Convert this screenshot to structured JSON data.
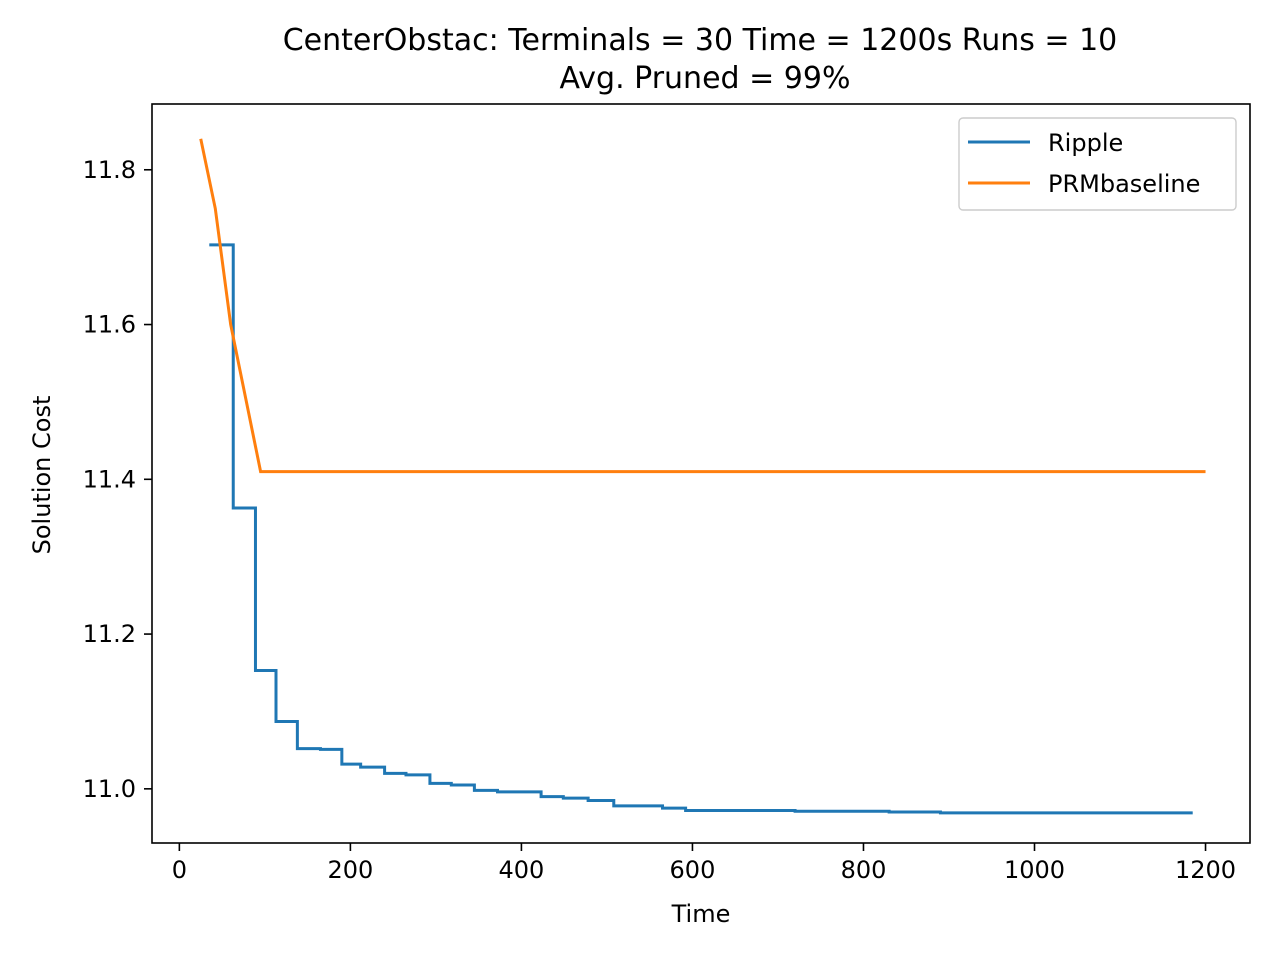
{
  "chart_data": {
    "type": "line",
    "title": "CenterObstac:  Terminals = 30  Time = 1200s  Runs = 10",
    "subtitle": "Avg. Pruned = 99%",
    "xlabel": "Time",
    "ylabel": "Solution Cost",
    "xlim": [
      -32,
      1252
    ],
    "ylim": [
      10.93,
      11.885
    ],
    "xticks": [
      0,
      200,
      400,
      600,
      800,
      1000,
      1200
    ],
    "yticks": [
      11.0,
      11.2,
      11.4,
      11.6,
      11.8
    ],
    "xtick_labels": [
      "0",
      "200",
      "400",
      "600",
      "800",
      "1000",
      "1200"
    ],
    "ytick_labels": [
      "11.0",
      "11.2",
      "11.4",
      "11.6",
      "11.8"
    ],
    "grid": false,
    "legend_position": "top-right",
    "series": [
      {
        "name": "Ripple",
        "color": "#1f77b4",
        "style": "step",
        "x": [
          35,
          63,
          63,
          89,
          89,
          113,
          113,
          138,
          138,
          165,
          165,
          190,
          190,
          212,
          212,
          240,
          240,
          265,
          265,
          293,
          293,
          318,
          318,
          345,
          345,
          372,
          372,
          398,
          398,
          423,
          423,
          449,
          449,
          478,
          478,
          508,
          508,
          540,
          540,
          565,
          565,
          592,
          592,
          650,
          650,
          720,
          720,
          830,
          830,
          890,
          890,
          1000,
          1000,
          1185
        ],
        "y": [
          11.703,
          11.703,
          11.363,
          11.363,
          11.153,
          11.153,
          11.087,
          11.087,
          11.052,
          11.052,
          11.051,
          11.051,
          11.032,
          11.032,
          11.028,
          11.028,
          11.02,
          11.02,
          11.018,
          11.018,
          11.007,
          11.007,
          11.005,
          11.005,
          10.998,
          10.998,
          10.996,
          10.996,
          10.996,
          10.996,
          10.99,
          10.99,
          10.988,
          10.988,
          10.985,
          10.985,
          10.978,
          10.978,
          10.978,
          10.978,
          10.975,
          10.975,
          10.972,
          10.972,
          10.972,
          10.972,
          10.971,
          10.971,
          10.97,
          10.97,
          10.969,
          10.969,
          10.969,
          10.969
        ]
      },
      {
        "name": "PRMbaseline",
        "color": "#ff7f0e",
        "style": "line",
        "x": [
          25,
          42,
          60,
          95,
          1200
        ],
        "y": [
          11.84,
          11.75,
          11.6,
          11.41,
          11.41
        ]
      }
    ]
  }
}
